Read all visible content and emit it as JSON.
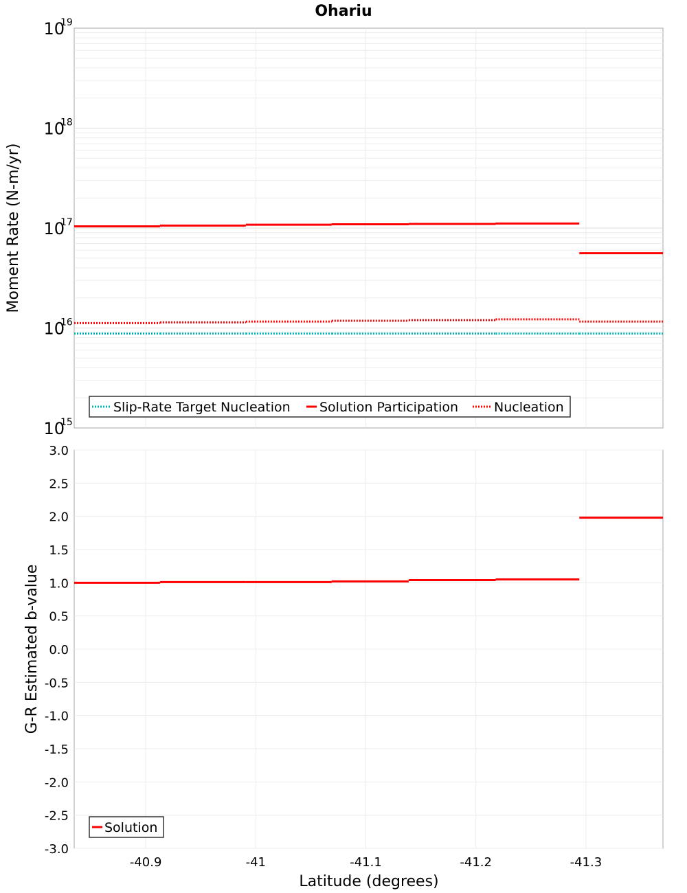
{
  "chart_data": {
    "title": "Ohariu",
    "xlabel": "Latitude (degrees)",
    "xlim": [
      -40.835,
      -41.37
    ],
    "xticks": [
      {
        "v": -40.9,
        "label": "-40.9"
      },
      {
        "v": -41.0,
        "label": "-41"
      },
      {
        "v": -41.1,
        "label": "-41.1"
      },
      {
        "v": -41.2,
        "label": "-41.2"
      },
      {
        "v": -41.3,
        "label": "-41.3"
      }
    ],
    "segment_edges": [
      -40.835,
      -40.913,
      -40.991,
      -41.069,
      -41.139,
      -41.218,
      -41.294,
      -41.37
    ],
    "panels": [
      {
        "type": "line",
        "scale": "log",
        "ylabel": "Moment Rate (N-m/yr)",
        "ylim_exp": [
          15,
          19
        ],
        "yticks": [
          {
            "exp": 15,
            "base": "10",
            "sup": "15"
          },
          {
            "exp": 16,
            "base": "10",
            "sup": "16"
          },
          {
            "exp": 17,
            "base": "10",
            "sup": "17"
          },
          {
            "exp": 18,
            "base": "10",
            "sup": "18"
          },
          {
            "exp": 19,
            "base": "10",
            "sup": "19"
          }
        ],
        "series": [
          {
            "name": "Slip-Rate Target Nucleation",
            "color": "#00b4b4",
            "style": "dotted",
            "values": [
              8800000000000000.0,
              8800000000000000.0,
              8800000000000000.0,
              8800000000000000.0,
              8800000000000000.0,
              8800000000000000.0,
              8800000000000000.0
            ]
          },
          {
            "name": "Solution Participation",
            "color": "#ff0000",
            "style": "solid",
            "values": [
              1.04e+17,
              1.06e+17,
              1.08e+17,
              1.09e+17,
              1.1e+17,
              1.11e+17,
              5.6e+16
            ]
          },
          {
            "name": "Nucleation",
            "color": "#ff0000",
            "style": "dotted",
            "values": [
              1.12e+16,
              1.14e+16,
              1.16e+16,
              1.18e+16,
              1.2e+16,
              1.22e+16,
              1.16e+16
            ]
          }
        ],
        "legend_position": "bottom-left"
      },
      {
        "type": "line",
        "scale": "linear",
        "ylabel": "G-R Estimated b-value",
        "ylim": [
          -3.0,
          3.0
        ],
        "yticks": [
          "-3.0",
          "-2.5",
          "-2.0",
          "-1.5",
          "-1.0",
          "-0.5",
          "0.0",
          "0.5",
          "1.0",
          "1.5",
          "2.0",
          "2.5",
          "3.0"
        ],
        "series": [
          {
            "name": "Solution",
            "color": "#ff0000",
            "style": "solid",
            "values": [
              1.0,
              1.01,
              1.01,
              1.02,
              1.04,
              1.05,
              1.98
            ]
          }
        ],
        "legend_position": "bottom-left"
      }
    ]
  }
}
